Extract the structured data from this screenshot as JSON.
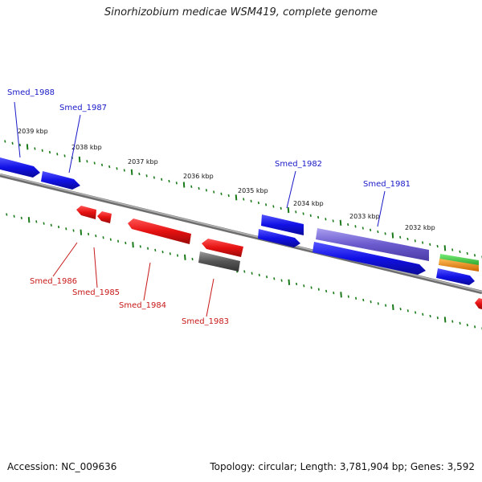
{
  "title": "Sinorhizobium medicae WSM419, complete genome",
  "footer": {
    "accession": "Accession: NC_009636",
    "info": "Topology: circular; Length: 3,781,904 bp; Genes: 3,592"
  },
  "colors": {
    "forward_gene": "#1111e6",
    "reverse_gene": "#e61111",
    "pseudo_gene": "#555555",
    "rna_purple": "#6a5acd",
    "trna_green": "#33bb33",
    "trna_orange": "#ee8800",
    "backbone": "#808080",
    "ticks": "#1a7a1a",
    "forward_label": "#1818c8",
    "reverse_label": "#c81818"
  },
  "scale_labels": [
    "2039 kbp",
    "2038 kbp",
    "2037 kbp",
    "2036 kbp",
    "2035 kbp",
    "2034 kbp",
    "2033 kbp",
    "2032 kbp"
  ],
  "genes": {
    "forward": [
      "Smed_1988",
      "Smed_1987",
      "Smed_1982",
      "Smed_1981"
    ],
    "reverse": [
      "Smed_1986",
      "Smed_1985",
      "Smed_1984",
      "Smed_1983"
    ]
  }
}
